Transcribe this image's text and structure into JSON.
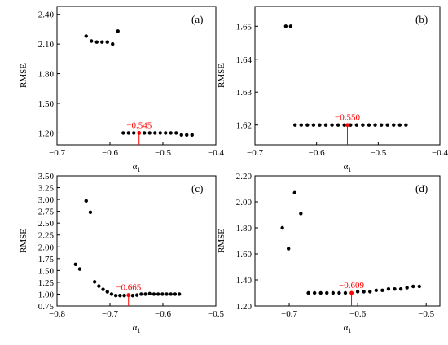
{
  "colors": {
    "points": "#000000",
    "highlight": "#ff0000",
    "axes": "#000000"
  },
  "chart_data": [
    {
      "type": "scatter",
      "panel_label": "(a)",
      "xlabel": "α1",
      "ylabel": "RMSE",
      "xlim": [
        -0.7,
        -0.4
      ],
      "ylim": [
        1.08,
        2.48
      ],
      "xticks": [
        -0.7,
        -0.6,
        -0.5,
        -0.4
      ],
      "xtick_labels": [
        "−0.7",
        "−0.6",
        "−0.5",
        "−0.4"
      ],
      "yticks": [
        1.2,
        1.5,
        1.8,
        2.1,
        2.4
      ],
      "ytick_labels": [
        "1.20",
        "1.50",
        "1.80",
        "2.10",
        "2.40"
      ],
      "points": [
        {
          "x": -0.645,
          "y": 2.18
        },
        {
          "x": -0.635,
          "y": 2.13
        },
        {
          "x": -0.625,
          "y": 2.12
        },
        {
          "x": -0.615,
          "y": 2.12
        },
        {
          "x": -0.605,
          "y": 2.12
        },
        {
          "x": -0.595,
          "y": 2.1
        },
        {
          "x": -0.585,
          "y": 2.23
        },
        {
          "x": -0.575,
          "y": 1.2
        },
        {
          "x": -0.565,
          "y": 1.2
        },
        {
          "x": -0.555,
          "y": 1.2
        },
        {
          "x": -0.545,
          "y": 1.2
        },
        {
          "x": -0.535,
          "y": 1.2
        },
        {
          "x": -0.525,
          "y": 1.2
        },
        {
          "x": -0.515,
          "y": 1.2
        },
        {
          "x": -0.505,
          "y": 1.2
        },
        {
          "x": -0.495,
          "y": 1.2
        },
        {
          "x": -0.485,
          "y": 1.2
        },
        {
          "x": -0.475,
          "y": 1.2
        },
        {
          "x": -0.465,
          "y": 1.18
        },
        {
          "x": -0.455,
          "y": 1.18
        },
        {
          "x": -0.445,
          "y": 1.18
        }
      ],
      "highlight": {
        "x": -0.545,
        "y": 1.2,
        "label": "−0.545"
      }
    },
    {
      "type": "scatter",
      "panel_label": "(b)",
      "xlabel": "α1",
      "ylabel": "RMSE",
      "xlim": [
        -0.7,
        -0.4
      ],
      "ylim": [
        1.614,
        1.656
      ],
      "xticks": [
        -0.7,
        -0.6,
        -0.5,
        -0.4
      ],
      "xtick_labels": [
        "−0.7",
        "−0.6",
        "−0.5",
        "−0.4"
      ],
      "yticks": [
        1.62,
        1.63,
        1.64,
        1.65
      ],
      "ytick_labels": [
        "1.62",
        "1.63",
        "1.64",
        "1.65"
      ],
      "points": [
        {
          "x": -0.65,
          "y": 1.65
        },
        {
          "x": -0.642,
          "y": 1.65
        },
        {
          "x": -0.635,
          "y": 1.62
        },
        {
          "x": -0.625,
          "y": 1.62
        },
        {
          "x": -0.615,
          "y": 1.62
        },
        {
          "x": -0.605,
          "y": 1.62
        },
        {
          "x": -0.595,
          "y": 1.62
        },
        {
          "x": -0.585,
          "y": 1.62
        },
        {
          "x": -0.575,
          "y": 1.62
        },
        {
          "x": -0.565,
          "y": 1.62
        },
        {
          "x": -0.555,
          "y": 1.62
        },
        {
          "x": -0.545,
          "y": 1.62
        },
        {
          "x": -0.535,
          "y": 1.62
        },
        {
          "x": -0.525,
          "y": 1.62
        },
        {
          "x": -0.515,
          "y": 1.62
        },
        {
          "x": -0.505,
          "y": 1.62
        },
        {
          "x": -0.495,
          "y": 1.62
        },
        {
          "x": -0.485,
          "y": 1.62
        },
        {
          "x": -0.475,
          "y": 1.62
        },
        {
          "x": -0.465,
          "y": 1.62
        },
        {
          "x": -0.455,
          "y": 1.62
        }
      ],
      "highlight": {
        "x": -0.55,
        "y": 1.62,
        "label": "−0.550"
      }
    },
    {
      "type": "scatter",
      "panel_label": "(c)",
      "xlabel": "α1",
      "ylabel": "RMSE",
      "xlim": [
        -0.8,
        -0.5
      ],
      "ylim": [
        0.75,
        3.5
      ],
      "xticks": [
        -0.8,
        -0.7,
        -0.6,
        -0.5
      ],
      "xtick_labels": [
        "−0.8",
        "−0.7",
        "−0.6",
        "−0.5"
      ],
      "yticks": [
        0.75,
        1.0,
        1.25,
        1.5,
        1.75,
        2.0,
        2.25,
        2.5,
        2.75,
        3.0,
        3.25,
        3.5
      ],
      "ytick_labels": [
        "0.75",
        "1.00",
        "1.25",
        "1.50",
        "1.75",
        "2.00",
        "2.25",
        "2.50",
        "2.75",
        "3.00",
        "3.25",
        "3.50"
      ],
      "points": [
        {
          "x": -0.765,
          "y": 1.63
        },
        {
          "x": -0.757,
          "y": 1.53
        },
        {
          "x": -0.745,
          "y": 2.97
        },
        {
          "x": -0.737,
          "y": 2.73
        },
        {
          "x": -0.729,
          "y": 1.26
        },
        {
          "x": -0.721,
          "y": 1.17
        },
        {
          "x": -0.713,
          "y": 1.1
        },
        {
          "x": -0.705,
          "y": 1.05
        },
        {
          "x": -0.697,
          "y": 1.0
        },
        {
          "x": -0.689,
          "y": 0.97
        },
        {
          "x": -0.681,
          "y": 0.97
        },
        {
          "x": -0.673,
          "y": 0.97
        },
        {
          "x": -0.665,
          "y": 0.98
        },
        {
          "x": -0.657,
          "y": 0.97
        },
        {
          "x": -0.649,
          "y": 0.98
        },
        {
          "x": -0.641,
          "y": 1.0
        },
        {
          "x": -0.633,
          "y": 1.0
        },
        {
          "x": -0.625,
          "y": 1.01
        },
        {
          "x": -0.617,
          "y": 1.0
        },
        {
          "x": -0.609,
          "y": 1.0
        },
        {
          "x": -0.601,
          "y": 1.0
        },
        {
          "x": -0.593,
          "y": 1.0
        },
        {
          "x": -0.585,
          "y": 1.0
        },
        {
          "x": -0.577,
          "y": 1.0
        },
        {
          "x": -0.569,
          "y": 1.0
        }
      ],
      "highlight": {
        "x": -0.665,
        "y": 0.98,
        "label": "−0.665"
      }
    },
    {
      "type": "scatter",
      "panel_label": "(d)",
      "xlabel": "α1",
      "ylabel": "RMSE",
      "xlim": [
        -0.75,
        -0.48
      ],
      "ylim": [
        1.2,
        2.2
      ],
      "xticks": [
        -0.7,
        -0.6,
        -0.5
      ],
      "xtick_labels": [
        "−0.7",
        "−0.6",
        "−0.5"
      ],
      "yticks": [
        1.2,
        1.4,
        1.6,
        1.8,
        2.0,
        2.2
      ],
      "ytick_labels": [
        "1.20",
        "1.40",
        "1.60",
        "1.80",
        "2.00",
        "2.20"
      ],
      "points": [
        {
          "x": -0.71,
          "y": 1.8
        },
        {
          "x": -0.701,
          "y": 1.64
        },
        {
          "x": -0.692,
          "y": 2.07
        },
        {
          "x": -0.683,
          "y": 1.91
        },
        {
          "x": -0.672,
          "y": 1.3
        },
        {
          "x": -0.663,
          "y": 1.3
        },
        {
          "x": -0.654,
          "y": 1.3
        },
        {
          "x": -0.645,
          "y": 1.3
        },
        {
          "x": -0.636,
          "y": 1.3
        },
        {
          "x": -0.627,
          "y": 1.3
        },
        {
          "x": -0.618,
          "y": 1.3
        },
        {
          "x": -0.609,
          "y": 1.3
        },
        {
          "x": -0.6,
          "y": 1.31
        },
        {
          "x": -0.591,
          "y": 1.31
        },
        {
          "x": -0.582,
          "y": 1.31
        },
        {
          "x": -0.573,
          "y": 1.32
        },
        {
          "x": -0.564,
          "y": 1.32
        },
        {
          "x": -0.555,
          "y": 1.33
        },
        {
          "x": -0.546,
          "y": 1.33
        },
        {
          "x": -0.537,
          "y": 1.33
        },
        {
          "x": -0.528,
          "y": 1.34
        },
        {
          "x": -0.519,
          "y": 1.35
        },
        {
          "x": -0.51,
          "y": 1.35
        }
      ],
      "highlight": {
        "x": -0.609,
        "y": 1.3,
        "label": "−0.609"
      }
    }
  ]
}
